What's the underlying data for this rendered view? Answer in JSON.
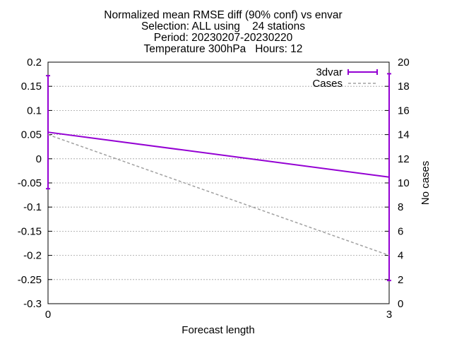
{
  "chart_data": {
    "type": "line",
    "title_lines": [
      "Normalized mean RMSE diff (90% conf) vs envar",
      "Selection: ALL using    24 stations",
      "Period: 20230207-20230220",
      "Temperature 300hPa   Hours: 12"
    ],
    "xlabel": "Forecast length",
    "ylabel": "",
    "y2label": "No cases",
    "xlim": [
      0,
      3
    ],
    "ylim": [
      -0.3,
      0.2
    ],
    "y2lim": [
      0,
      20
    ],
    "x_ticks": [
      "0",
      "3"
    ],
    "y_ticks": [
      "0.2",
      "0.15",
      "0.1",
      "0.05",
      "0",
      "-0.05",
      "-0.1",
      "-0.15",
      "-0.2",
      "-0.25",
      "-0.3"
    ],
    "y2_ticks": [
      "20",
      "18",
      "16",
      "14",
      "12",
      "10",
      "8",
      "6",
      "4",
      "2",
      "0"
    ],
    "grid": true,
    "legend_position": "top-right",
    "series": [
      {
        "name": "3dvar",
        "axis": "y",
        "color": "#9400d3",
        "style": "solid-with-errorbars",
        "x": [
          0,
          3
        ],
        "y": [
          0.055,
          -0.038
        ],
        "y_low": [
          -0.062,
          -0.252
        ],
        "y_high": [
          0.172,
          0.176
        ]
      },
      {
        "name": "Cases",
        "axis": "y2",
        "color": "#a0a0a0",
        "style": "dashed",
        "x": [
          0,
          3
        ],
        "y": [
          14,
          4
        ]
      }
    ]
  }
}
